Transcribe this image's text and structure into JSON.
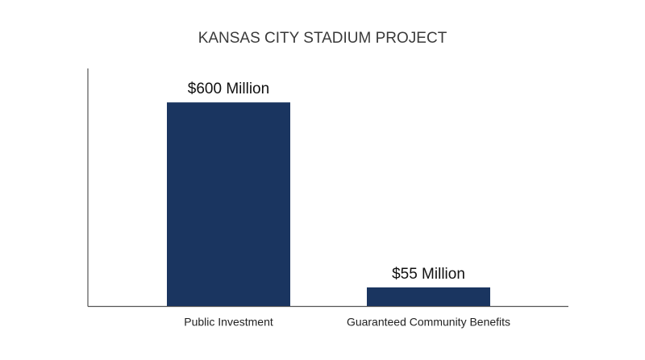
{
  "chart_data": {
    "type": "bar",
    "title": "KANSAS CITY STADIUM PROJECT",
    "categories": [
      "Public Investment",
      "Guaranteed Community Benefits"
    ],
    "values": [
      600,
      55
    ],
    "value_labels": [
      "$600 Million",
      "$55 Million"
    ],
    "color": "#1a3560",
    "ylim": [
      0,
      700
    ]
  }
}
